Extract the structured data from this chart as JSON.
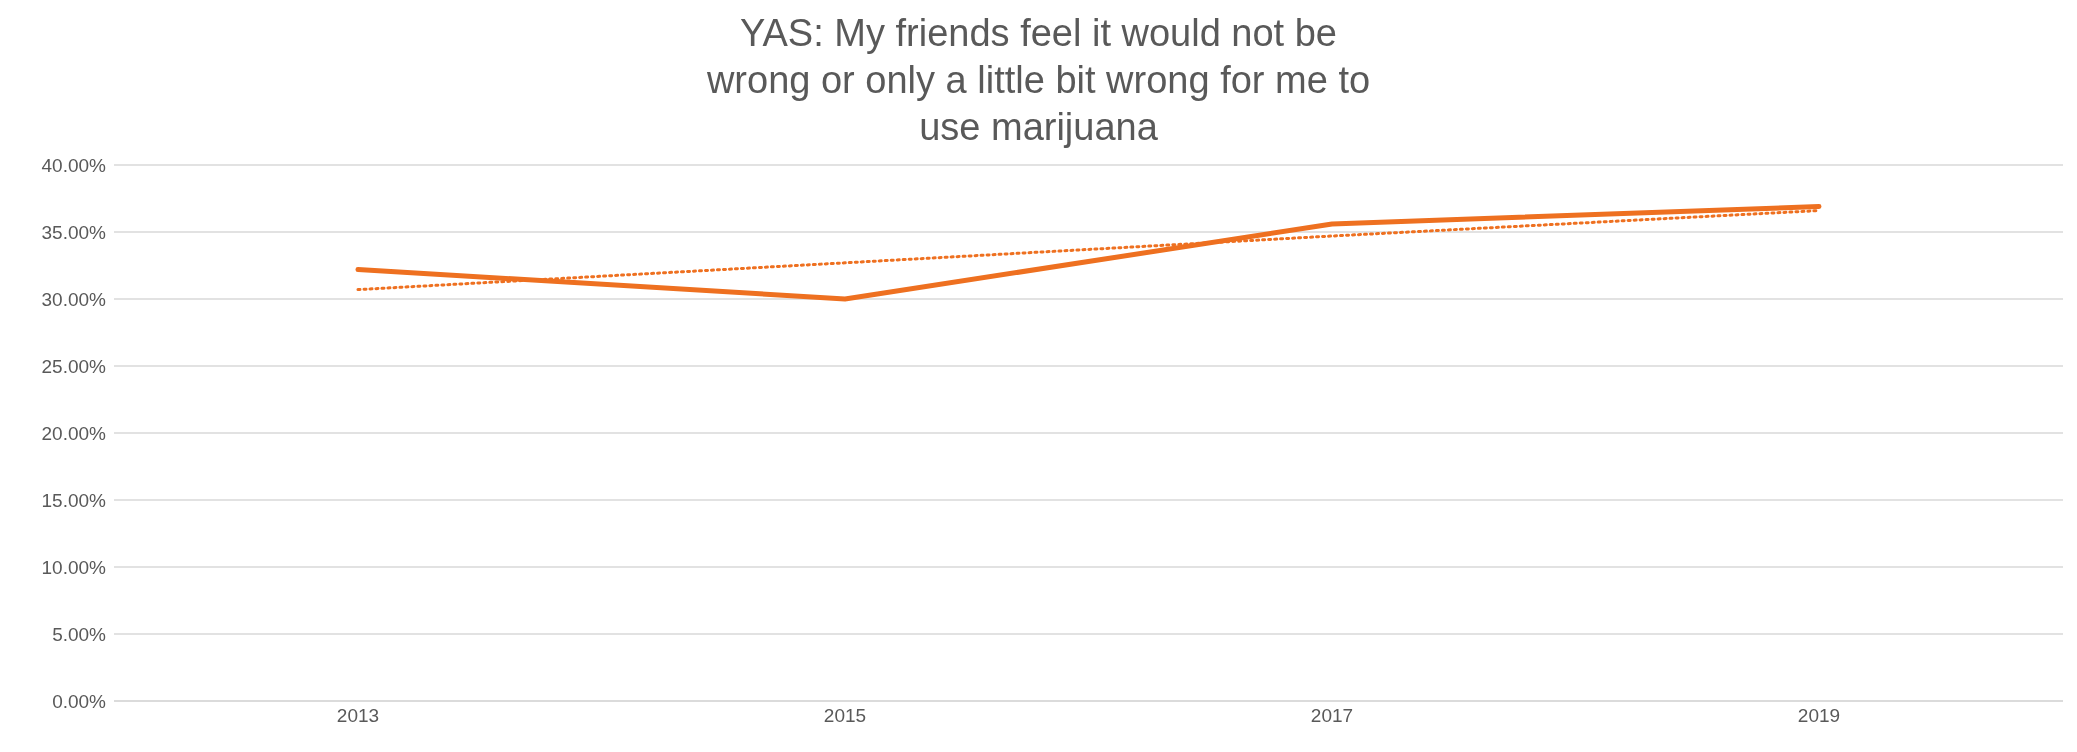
{
  "chart_data": {
    "type": "line",
    "title": "YAS: My friends feel it would not be wrong or only a little bit wrong for me to use marijuana",
    "categories": [
      "2013",
      "2015",
      "2017",
      "2019"
    ],
    "series": [
      {
        "color": "#ee7020",
        "values": [
          32.2,
          30.0,
          35.6,
          36.9
        ],
        "line_style": "solid"
      },
      {
        "color": "#ee7020",
        "values": [
          30.7,
          32.7,
          34.7,
          36.6
        ],
        "line_style": "dotted"
      }
    ],
    "ylim": [
      0,
      40
    ],
    "yticks": [
      {
        "value": 0,
        "label": "0.00%"
      },
      {
        "value": 5,
        "label": "5.00%"
      },
      {
        "value": 10,
        "label": "10.00%"
      },
      {
        "value": 15,
        "label": "15.00%"
      },
      {
        "value": 20,
        "label": "20.00%"
      },
      {
        "value": 25,
        "label": "25.00%"
      },
      {
        "value": 30,
        "label": "30.00%"
      },
      {
        "value": 35,
        "label": "35.00%"
      },
      {
        "value": 40,
        "label": "40.00%"
      }
    ],
    "grid": "y",
    "marker": "none"
  }
}
